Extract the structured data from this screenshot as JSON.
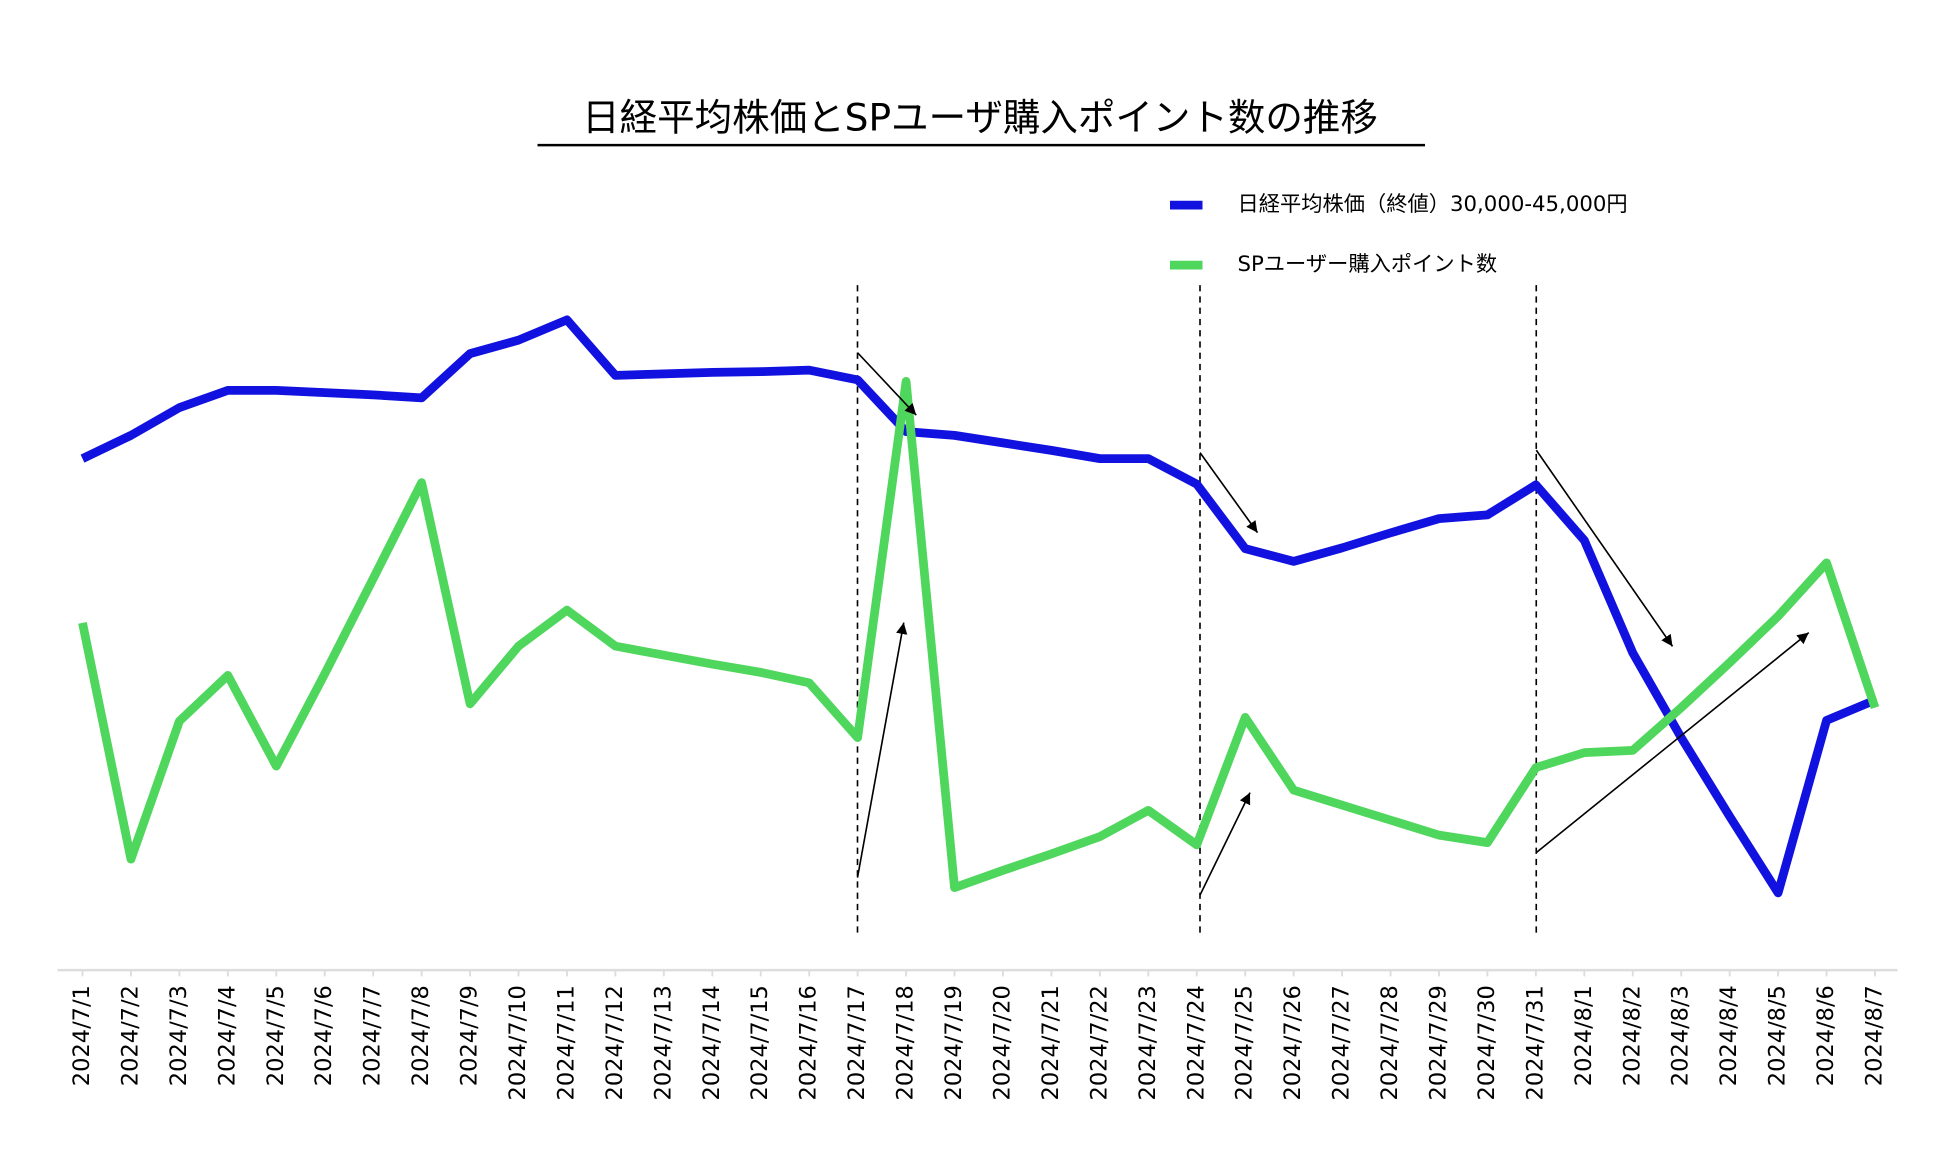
{
  "chart_data": {
    "type": "line",
    "title": "日経平均株価とSPユーザ購入ポイント数の推移",
    "categories": [
      "2024/7/1",
      "2024/7/2",
      "2024/7/3",
      "2024/7/4",
      "2024/7/5",
      "2024/7/6",
      "2024/7/7",
      "2024/7/8",
      "2024/7/9",
      "2024/7/10",
      "2024/7/11",
      "2024/7/12",
      "2024/7/13",
      "2024/7/14",
      "2024/7/15",
      "2024/7/16",
      "2024/7/17",
      "2024/7/18",
      "2024/7/19",
      "2024/7/20",
      "2024/7/21",
      "2024/7/22",
      "2024/7/23",
      "2024/7/24",
      "2024/7/25",
      "2024/7/26",
      "2024/7/27",
      "2024/7/28",
      "2024/7/29",
      "2024/7/30",
      "2024/7/31",
      "2024/8/1",
      "2024/8/2",
      "2024/8/3",
      "2024/8/4",
      "2024/8/5",
      "2024/8/6",
      "2024/8/7"
    ],
    "series": [
      {
        "name": "日経平均株価（終値）30,000-45,000円",
        "color": "#1212e0",
        "values": [
          68.2,
          71.3,
          75,
          77.3,
          77.3,
          77,
          76.7,
          76.3,
          82.2,
          84,
          86.7,
          79.3,
          79.5,
          79.7,
          79.8,
          80,
          78.7,
          71.8,
          71.3,
          70.3,
          69.3,
          68.2,
          68.2,
          64.8,
          56.2,
          54.5,
          56.3,
          58.3,
          60.2,
          60.7,
          64.7,
          57.3,
          42.3,
          31,
          20.5,
          10.3,
          33.3,
          36
        ]
      },
      {
        "name": "SPユーザー購入ポイント数",
        "color": "#4fd65c",
        "values": [
          46.3,
          14.8,
          33.2,
          39.3,
          27.2,
          39.5,
          52.2,
          65,
          35.5,
          43.2,
          48,
          43.2,
          42,
          40.8,
          39.7,
          38.3,
          31,
          78.5,
          11,
          13.3,
          15.5,
          17.8,
          21.3,
          16.7,
          33.7,
          24,
          22,
          20,
          18,
          17,
          27,
          29,
          29.3,
          35,
          41,
          47.2,
          54.3,
          35
        ]
      }
    ],
    "ylim": [
      0,
      100
    ]
  }
}
